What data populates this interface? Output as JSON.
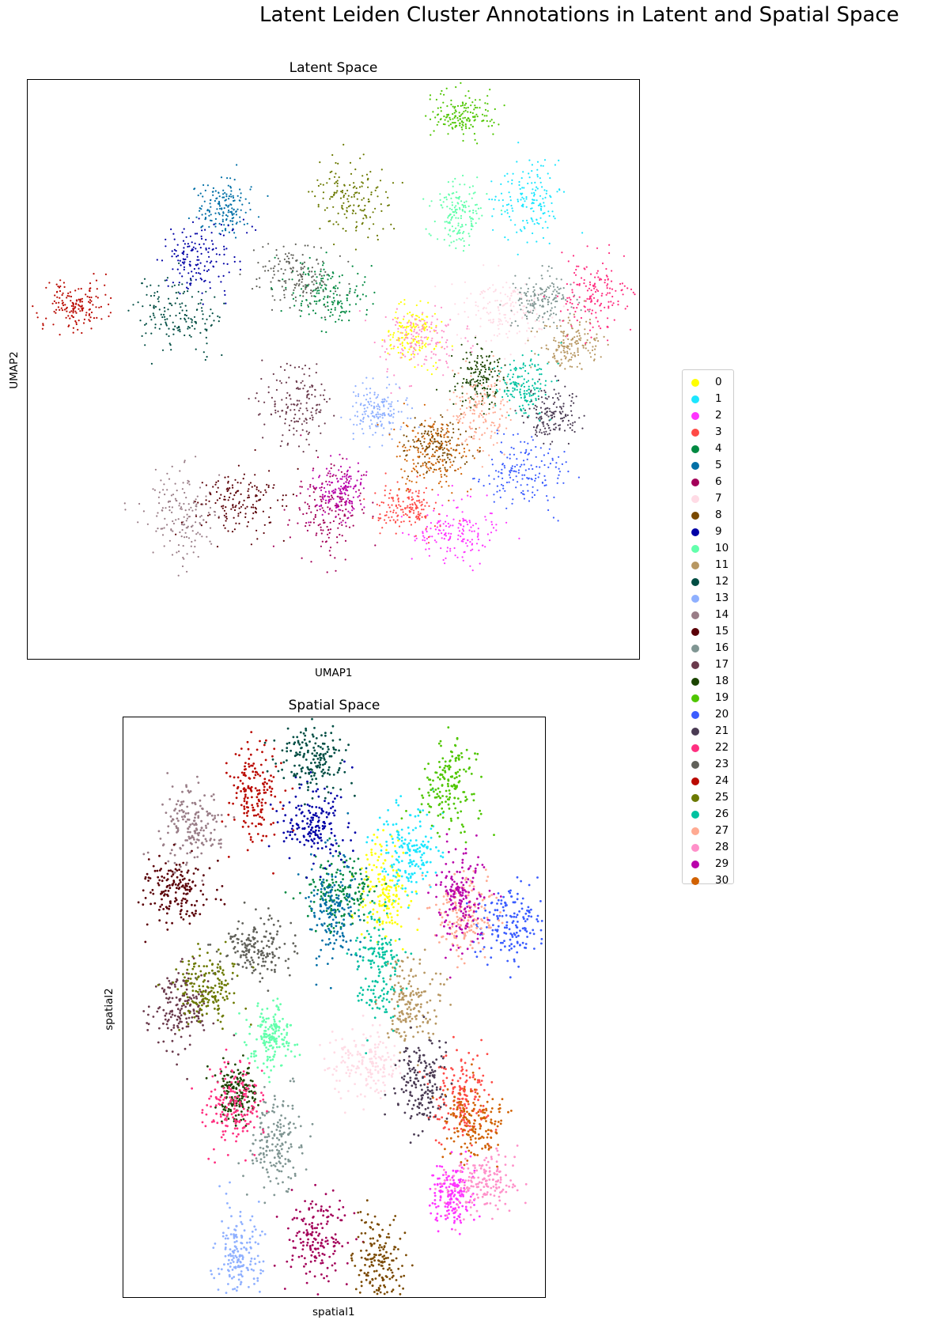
{
  "figure": {
    "title": "Latent Leiden Cluster Annotations in Latent and Spatial Space"
  },
  "panels": {
    "latent": {
      "title": "Latent Space",
      "xlabel": "UMAP1",
      "ylabel": "UMAP2"
    },
    "spatial": {
      "title": "Spatial Space",
      "xlabel": "spatial1",
      "ylabel": "spatial2"
    }
  },
  "legend": {
    "placement": "right",
    "entries": [
      {
        "label": "0",
        "color": "#ffff00"
      },
      {
        "label": "1",
        "color": "#1ce6ff"
      },
      {
        "label": "2",
        "color": "#ff34ff"
      },
      {
        "label": "3",
        "color": "#ff4a46"
      },
      {
        "label": "4",
        "color": "#008941"
      },
      {
        "label": "5",
        "color": "#006fa6"
      },
      {
        "label": "6",
        "color": "#a30059"
      },
      {
        "label": "7",
        "color": "#ffdbe5"
      },
      {
        "label": "8",
        "color": "#7a4900"
      },
      {
        "label": "9",
        "color": "#0000a6"
      },
      {
        "label": "10",
        "color": "#63ffac"
      },
      {
        "label": "11",
        "color": "#b79762"
      },
      {
        "label": "12",
        "color": "#004d43"
      },
      {
        "label": "13",
        "color": "#8fb0ff"
      },
      {
        "label": "14",
        "color": "#997d87"
      },
      {
        "label": "15",
        "color": "#5a0007"
      },
      {
        "label": "16",
        "color": "#809693"
      },
      {
        "label": "17",
        "color": "#6a3a4c"
      },
      {
        "label": "18",
        "color": "#1b4400"
      },
      {
        "label": "19",
        "color": "#4fc601"
      },
      {
        "label": "20",
        "color": "#3b5dff"
      },
      {
        "label": "21",
        "color": "#4a3b53"
      },
      {
        "label": "22",
        "color": "#ff2f80"
      },
      {
        "label": "23",
        "color": "#61615a"
      },
      {
        "label": "24",
        "color": "#ba0900"
      },
      {
        "label": "25",
        "color": "#6b7900"
      },
      {
        "label": "26",
        "color": "#00c2a0"
      },
      {
        "label": "27",
        "color": "#ffaa92"
      },
      {
        "label": "28",
        "color": "#ff90c9"
      },
      {
        "label": "29",
        "color": "#b903aa"
      },
      {
        "label": "30",
        "color": "#d16100"
      }
    ]
  },
  "chart_data": [
    {
      "type": "scatter",
      "title": "Latent Space",
      "xlabel": "UMAP1",
      "ylabel": "UMAP2",
      "grid": false,
      "legend": "right",
      "cluster_centers": [
        {
          "cluster": "0",
          "x": 0.63,
          "y": 0.56
        },
        {
          "cluster": "1",
          "x": 0.82,
          "y": 0.79
        },
        {
          "cluster": "2",
          "x": 0.7,
          "y": 0.22
        },
        {
          "cluster": "3",
          "x": 0.62,
          "y": 0.26
        },
        {
          "cluster": "4",
          "x": 0.49,
          "y": 0.63
        },
        {
          "cluster": "5",
          "x": 0.32,
          "y": 0.78
        },
        {
          "cluster": "6",
          "x": 0.49,
          "y": 0.25
        },
        {
          "cluster": "7",
          "x": 0.78,
          "y": 0.6
        },
        {
          "cluster": "8",
          "x": 0.67,
          "y": 0.37
        },
        {
          "cluster": "9",
          "x": 0.28,
          "y": 0.69
        },
        {
          "cluster": "10",
          "x": 0.7,
          "y": 0.77
        },
        {
          "cluster": "11",
          "x": 0.89,
          "y": 0.54
        },
        {
          "cluster": "12",
          "x": 0.24,
          "y": 0.59
        },
        {
          "cluster": "13",
          "x": 0.57,
          "y": 0.43
        },
        {
          "cluster": "14",
          "x": 0.25,
          "y": 0.25
        },
        {
          "cluster": "15",
          "x": 0.35,
          "y": 0.27
        },
        {
          "cluster": "16",
          "x": 0.84,
          "y": 0.62
        },
        {
          "cluster": "17",
          "x": 0.44,
          "y": 0.44
        },
        {
          "cluster": "18",
          "x": 0.74,
          "y": 0.49
        },
        {
          "cluster": "19",
          "x": 0.71,
          "y": 0.94
        },
        {
          "cluster": "20",
          "x": 0.81,
          "y": 0.32
        },
        {
          "cluster": "21",
          "x": 0.86,
          "y": 0.42
        },
        {
          "cluster": "22",
          "x": 0.93,
          "y": 0.63
        },
        {
          "cluster": "23",
          "x": 0.44,
          "y": 0.66
        },
        {
          "cluster": "24",
          "x": 0.08,
          "y": 0.61
        },
        {
          "cluster": "25",
          "x": 0.53,
          "y": 0.8
        },
        {
          "cluster": "26",
          "x": 0.81,
          "y": 0.47
        },
        {
          "cluster": "27",
          "x": 0.74,
          "y": 0.43
        },
        {
          "cluster": "28",
          "x": 0.64,
          "y": 0.55
        },
        {
          "cluster": "29",
          "x": 0.51,
          "y": 0.29
        },
        {
          "cluster": "30",
          "x": 0.66,
          "y": 0.35
        }
      ]
    },
    {
      "type": "scatter",
      "title": "Spatial Space",
      "xlabel": "spatial1",
      "ylabel": "spatial2",
      "grid": false,
      "legend": "right",
      "cluster_centers": [
        {
          "cluster": "0",
          "x": 0.62,
          "y": 0.69
        },
        {
          "cluster": "1",
          "x": 0.68,
          "y": 0.77
        },
        {
          "cluster": "2",
          "x": 0.78,
          "y": 0.18
        },
        {
          "cluster": "3",
          "x": 0.8,
          "y": 0.35
        },
        {
          "cluster": "4",
          "x": 0.52,
          "y": 0.7
        },
        {
          "cluster": "5",
          "x": 0.5,
          "y": 0.67
        },
        {
          "cluster": "6",
          "x": 0.46,
          "y": 0.1
        },
        {
          "cluster": "7",
          "x": 0.58,
          "y": 0.4
        },
        {
          "cluster": "8",
          "x": 0.6,
          "y": 0.06
        },
        {
          "cluster": "9",
          "x": 0.45,
          "y": 0.82
        },
        {
          "cluster": "10",
          "x": 0.35,
          "y": 0.45
        },
        {
          "cluster": "11",
          "x": 0.68,
          "y": 0.51
        },
        {
          "cluster": "12",
          "x": 0.45,
          "y": 0.93
        },
        {
          "cluster": "13",
          "x": 0.27,
          "y": 0.07
        },
        {
          "cluster": "14",
          "x": 0.16,
          "y": 0.81
        },
        {
          "cluster": "15",
          "x": 0.12,
          "y": 0.7
        },
        {
          "cluster": "16",
          "x": 0.36,
          "y": 0.27
        },
        {
          "cluster": "17",
          "x": 0.14,
          "y": 0.5
        },
        {
          "cluster": "18",
          "x": 0.27,
          "y": 0.35
        },
        {
          "cluster": "19",
          "x": 0.77,
          "y": 0.88
        },
        {
          "cluster": "20",
          "x": 0.92,
          "y": 0.64
        },
        {
          "cluster": "21",
          "x": 0.71,
          "y": 0.37
        },
        {
          "cluster": "22",
          "x": 0.26,
          "y": 0.33
        },
        {
          "cluster": "23",
          "x": 0.32,
          "y": 0.6
        },
        {
          "cluster": "24",
          "x": 0.31,
          "y": 0.87
        },
        {
          "cluster": "25",
          "x": 0.2,
          "y": 0.53
        },
        {
          "cluster": "26",
          "x": 0.61,
          "y": 0.57
        },
        {
          "cluster": "27",
          "x": 0.81,
          "y": 0.66
        },
        {
          "cluster": "28",
          "x": 0.85,
          "y": 0.2
        },
        {
          "cluster": "29",
          "x": 0.8,
          "y": 0.69
        },
        {
          "cluster": "30",
          "x": 0.83,
          "y": 0.3
        }
      ]
    }
  ]
}
